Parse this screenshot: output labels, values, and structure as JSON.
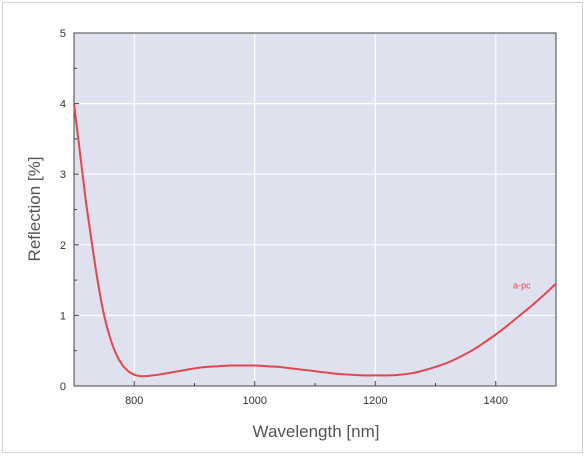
{
  "chart_data": {
    "type": "line",
    "title": "",
    "xlabel": "Wavelength [nm]",
    "ylabel": "Reflection [%]",
    "xlim": [
      700,
      1500
    ],
    "ylim": [
      0,
      5
    ],
    "xticks": [
      800,
      1000,
      1200,
      1400
    ],
    "yticks": [
      0,
      1,
      2,
      3,
      4,
      5
    ],
    "grid": true,
    "plot_background": "#dfe1ef",
    "grid_color": "#ffffff",
    "series": [
      {
        "name": "a-pc",
        "color": "#e0474f",
        "x": [
          700,
          710,
          720,
          730,
          740,
          750,
          760,
          770,
          780,
          790,
          800,
          810,
          820,
          830,
          840,
          860,
          880,
          900,
          920,
          940,
          960,
          980,
          1000,
          1020,
          1040,
          1060,
          1080,
          1100,
          1120,
          1140,
          1160,
          1180,
          1200,
          1220,
          1240,
          1260,
          1280,
          1300,
          1320,
          1340,
          1360,
          1380,
          1400,
          1420,
          1440,
          1460,
          1480,
          1500
        ],
        "values": [
          4.0,
          3.3,
          2.6,
          2.0,
          1.45,
          1.0,
          0.68,
          0.45,
          0.3,
          0.21,
          0.16,
          0.14,
          0.14,
          0.15,
          0.16,
          0.19,
          0.22,
          0.25,
          0.27,
          0.28,
          0.29,
          0.29,
          0.29,
          0.28,
          0.27,
          0.25,
          0.23,
          0.21,
          0.19,
          0.17,
          0.16,
          0.15,
          0.15,
          0.15,
          0.16,
          0.18,
          0.22,
          0.27,
          0.33,
          0.41,
          0.5,
          0.61,
          0.73,
          0.86,
          1.0,
          1.14,
          1.29,
          1.45
        ]
      }
    ]
  }
}
